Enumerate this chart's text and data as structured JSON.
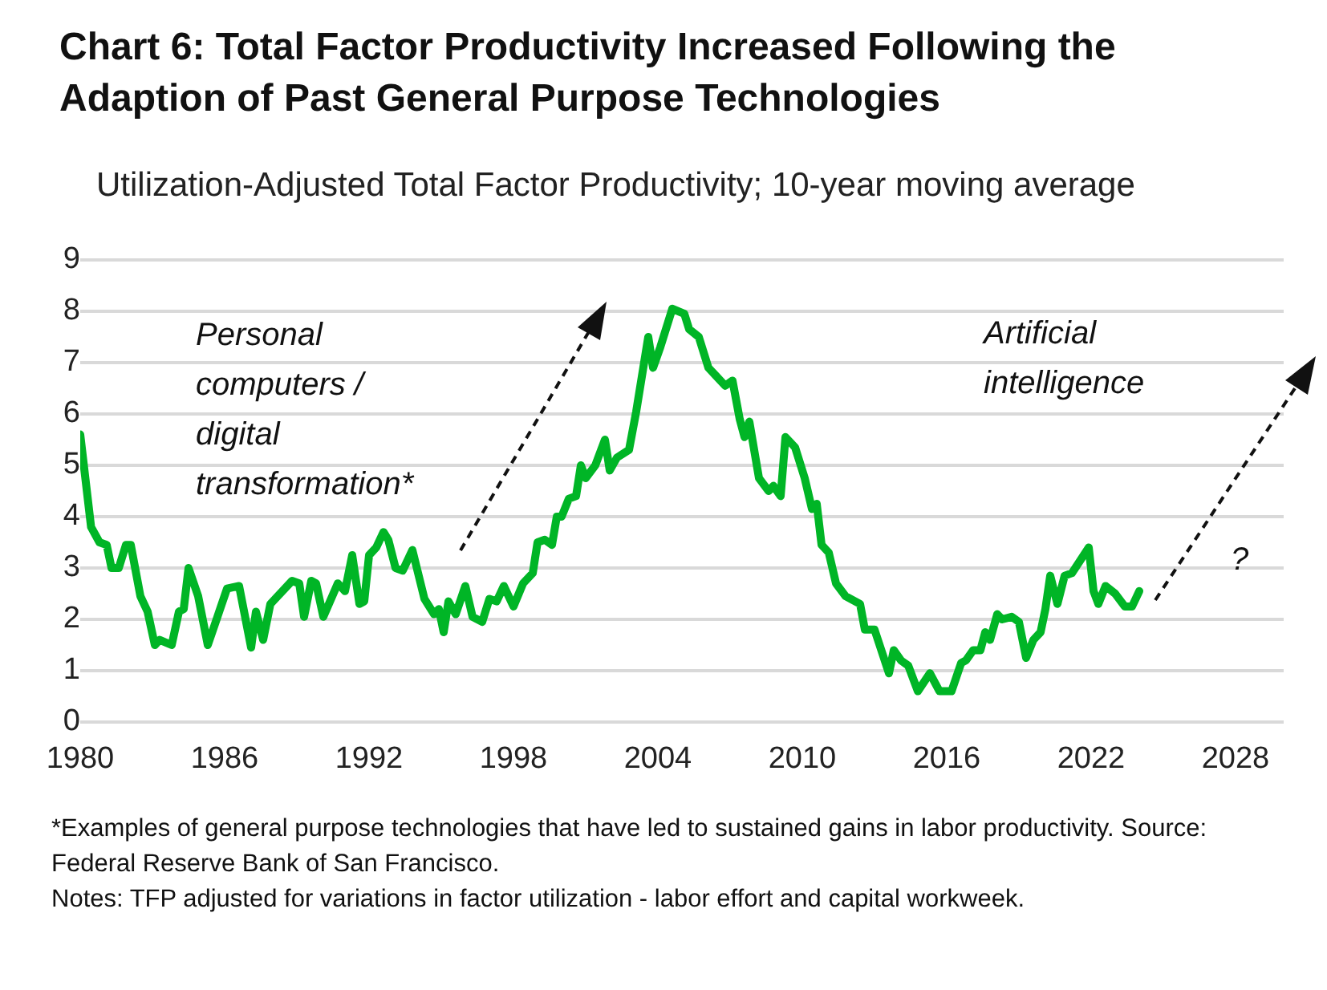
{
  "chart_data": {
    "type": "line",
    "title": "Chart 6: Total Factor Productivity Increased Following the Adaption of Past General Purpose Technologies",
    "subtitle": "Utilization-Adjusted Total Factor Productivity; 10-year moving average",
    "annotations": [
      "Personal computers / digital transformation*",
      "Artificial intelligence",
      "?",
      "*Examples of general purpose technologies that have led to sustained gains in labor productivity. Source: Federal Reserve Bank of San Francisco.",
      "Notes:  TFP adjusted for variations in factor utilization - labor effort and capital workweek."
    ],
    "xlim": [
      1980,
      2030
    ],
    "xticks": [
      1980,
      1986,
      1992,
      1998,
      2004,
      2010,
      2016,
      2022,
      2028
    ],
    "ylim": [
      0,
      9
    ],
    "yticks": [
      0,
      1,
      2,
      3,
      4,
      5,
      6,
      7,
      8,
      9
    ],
    "grid": "y",
    "legend": false,
    "marker": "none",
    "line_style": "solid",
    "series": [
      {
        "color": "#00b526",
        "x": [
          1980.0,
          1980.45,
          1980.8,
          1981.1,
          1981.3,
          1981.6,
          1981.9,
          1982.1,
          1982.5,
          1982.8,
          1983.1,
          1983.3,
          1983.8,
          1984.1,
          1984.3,
          1984.5,
          1984.9,
          1985.3,
          1985.7,
          1986.1,
          1986.6,
          1987.1,
          1987.3,
          1987.6,
          1987.9,
          1988.8,
          1989.1,
          1989.3,
          1989.6,
          1989.8,
          1990.1,
          1990.7,
          1991.0,
          1991.3,
          1991.6,
          1991.8,
          1992.0,
          1992.3,
          1992.6,
          1992.8,
          1993.1,
          1993.4,
          1993.8,
          1994.3,
          1994.7,
          1994.9,
          1995.1,
          1995.3,
          1995.6,
          1996.0,
          1996.3,
          1996.7,
          1997.0,
          1997.3,
          1997.6,
          1998.0,
          1998.4,
          1998.8,
          1999.0,
          1999.3,
          1999.6,
          1999.8,
          2000.0,
          2000.3,
          2000.6,
          2000.8,
          2001.0,
          2001.4,
          2001.8,
          2002.0,
          2002.3,
          2002.8,
          2003.1,
          2003.6,
          2003.8,
          2004.1,
          2004.6,
          2005.1,
          2005.3,
          2005.7,
          2006.1,
          2006.4,
          2006.8,
          2007.1,
          2007.4,
          2007.6,
          2007.8,
          2008.2,
          2008.6,
          2008.8,
          2009.1,
          2009.3,
          2009.7,
          2010.1,
          2010.4,
          2010.6,
          2010.8,
          2011.1,
          2011.4,
          2011.8,
          2012.2,
          2012.4,
          2012.6,
          2013.0,
          2013.6,
          2013.8,
          2014.1,
          2014.4,
          2014.8,
          2015.3,
          2015.7,
          2016.2,
          2016.6,
          2016.8,
          2017.1,
          2017.4,
          2017.6,
          2017.8,
          2018.1,
          2018.3,
          2018.7,
          2019.0,
          2019.3,
          2019.6,
          2019.9,
          2020.1,
          2020.3,
          2020.6,
          2020.9,
          2021.2,
          2021.9,
          2022.1,
          2022.3,
          2022.6,
          2023.0,
          2023.4,
          2023.7,
          2024.0
        ],
        "values": [
          5.6,
          3.8,
          3.5,
          3.45,
          3.0,
          3.0,
          3.45,
          3.45,
          2.45,
          2.15,
          1.5,
          1.6,
          1.5,
          2.15,
          2.2,
          3.0,
          2.45,
          1.5,
          2.05,
          2.6,
          2.65,
          1.45,
          2.15,
          1.6,
          2.3,
          2.75,
          2.7,
          2.05,
          2.75,
          2.7,
          2.05,
          2.7,
          2.55,
          3.25,
          2.3,
          2.35,
          3.25,
          3.4,
          3.7,
          3.55,
          3.0,
          2.95,
          3.35,
          2.4,
          2.1,
          2.2,
          1.75,
          2.35,
          2.1,
          2.65,
          2.05,
          1.95,
          2.4,
          2.35,
          2.65,
          2.25,
          2.7,
          2.9,
          3.5,
          3.55,
          3.45,
          4.0,
          4.0,
          4.35,
          4.4,
          5.0,
          4.75,
          5.0,
          5.5,
          4.9,
          5.15,
          5.3,
          6.05,
          7.5,
          6.9,
          7.3,
          8.05,
          7.95,
          7.65,
          7.5,
          6.9,
          6.75,
          6.55,
          6.65,
          5.9,
          5.55,
          5.85,
          4.75,
          4.5,
          4.6,
          4.4,
          5.55,
          5.35,
          4.75,
          4.15,
          4.25,
          3.45,
          3.3,
          2.7,
          2.45,
          2.35,
          2.3,
          1.8,
          1.8,
          0.95,
          1.4,
          1.2,
          1.1,
          0.6,
          0.95,
          0.6,
          0.6,
          1.15,
          1.2,
          1.4,
          1.4,
          1.75,
          1.6,
          2.1,
          2.0,
          2.05,
          1.95,
          1.25,
          1.6,
          1.75,
          2.2,
          2.85,
          2.3,
          2.85,
          2.9,
          3.4,
          2.55,
          2.3,
          2.65,
          2.5,
          2.25,
          2.25,
          2.55
        ]
      }
    ]
  }
}
